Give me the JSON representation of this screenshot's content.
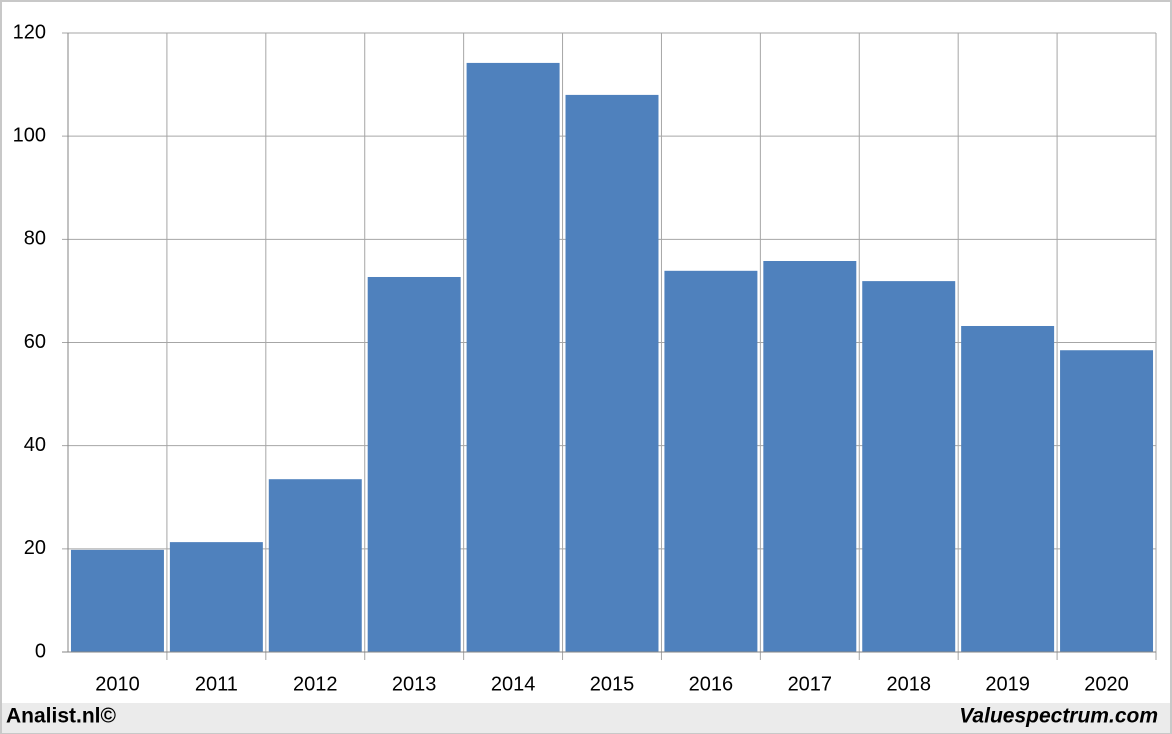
{
  "chart_data": {
    "type": "bar",
    "categories": [
      "2010",
      "2011",
      "2012",
      "2013",
      "2014",
      "2015",
      "2016",
      "2017",
      "2018",
      "2019",
      "2020"
    ],
    "values": [
      19.8,
      21.3,
      33.5,
      72.7,
      114.2,
      108.0,
      73.9,
      75.8,
      71.9,
      63.2,
      58.5
    ],
    "color": "#4f81bd",
    "ylim": [
      0,
      120
    ],
    "yticks": [
      0,
      20,
      40,
      60,
      80,
      100,
      120
    ],
    "grid": true
  },
  "footer": {
    "left": "Analist.nl©",
    "right": "Valuespectrum.com"
  }
}
